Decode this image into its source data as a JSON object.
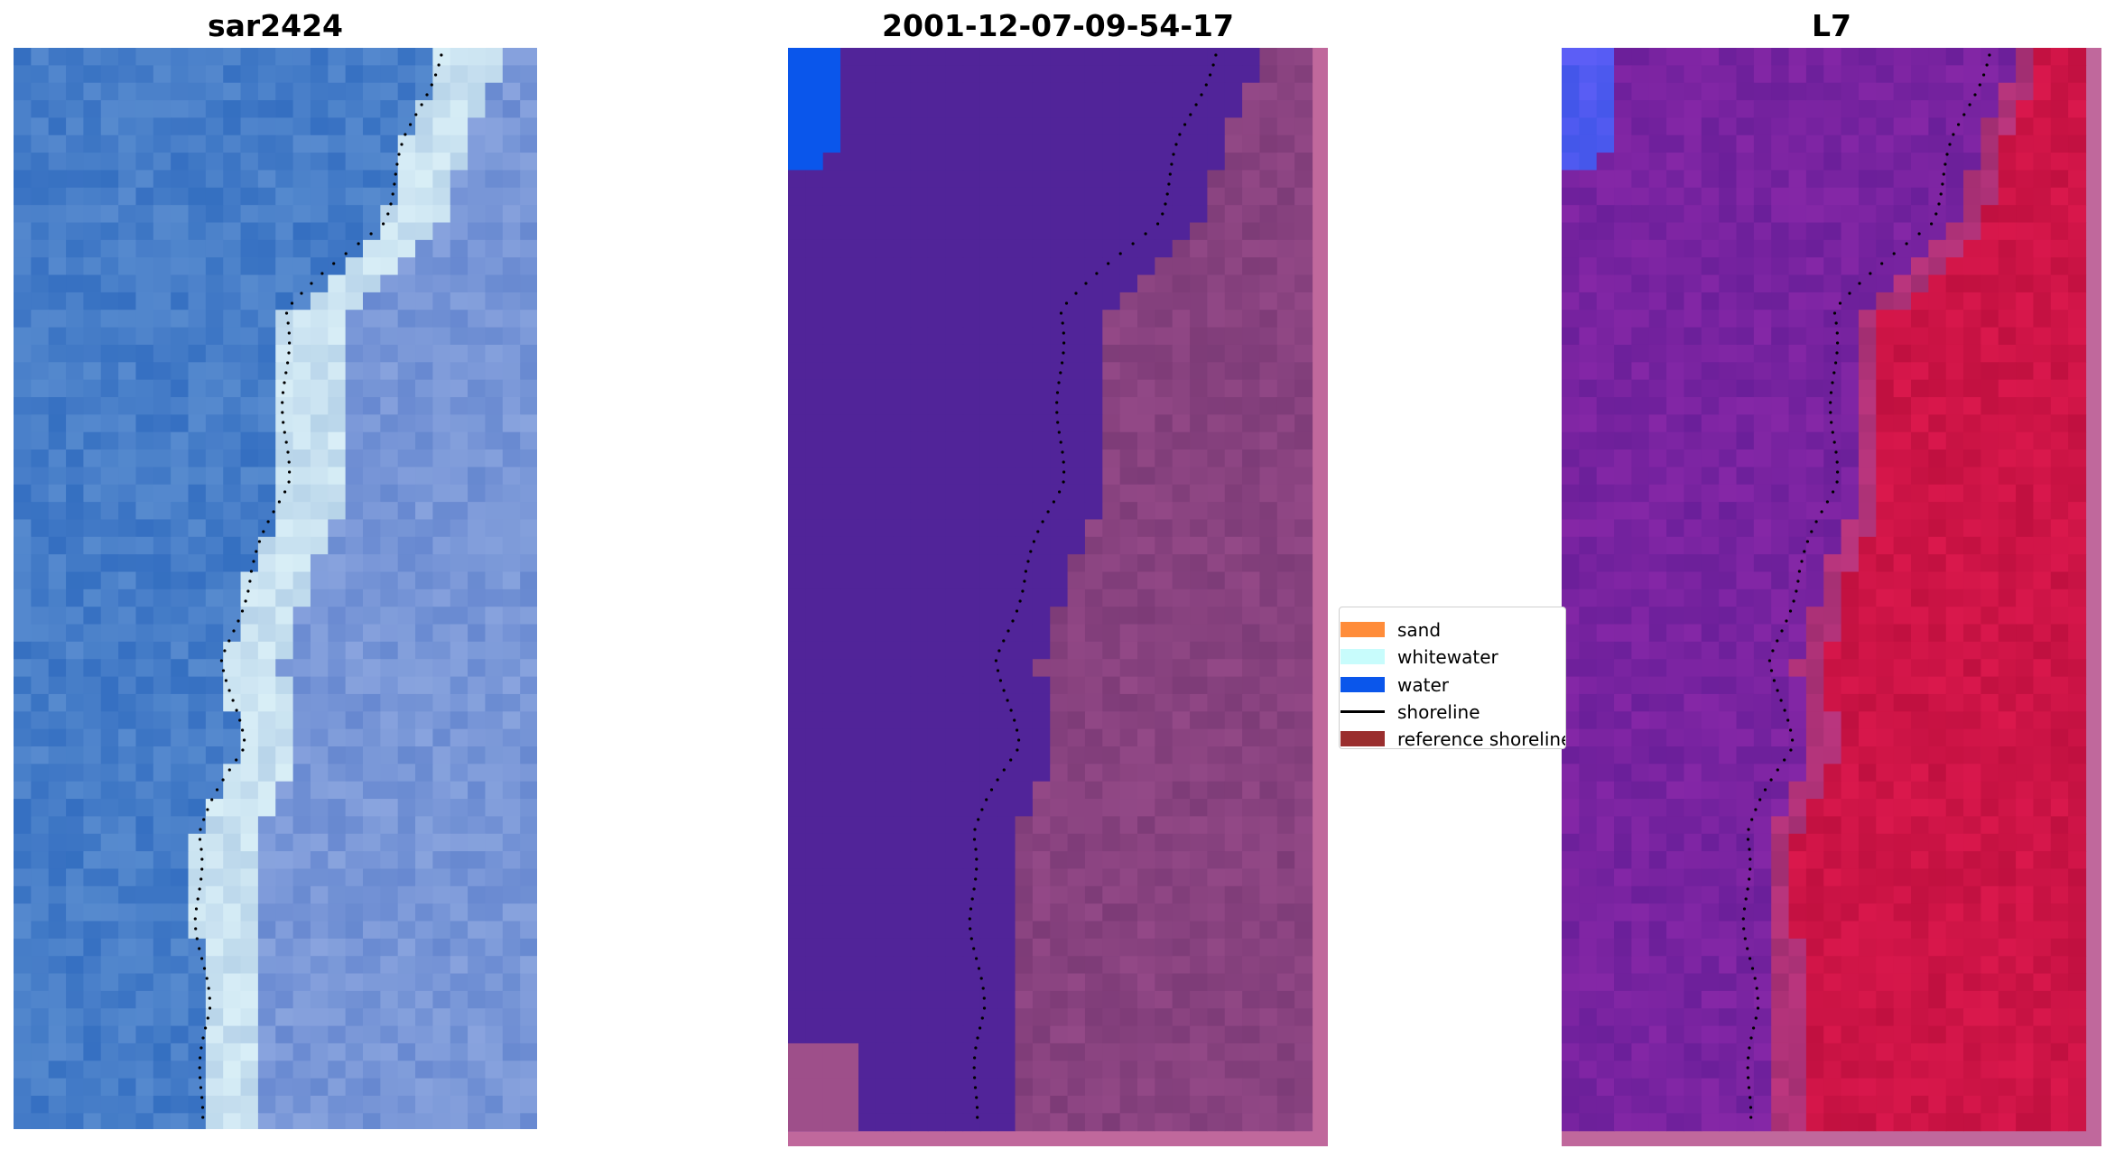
{
  "panels": [
    {
      "title": "sar2424",
      "palette": "rgb"
    },
    {
      "title": "2001-12-07-09-54-17",
      "palette": "classified"
    },
    {
      "title": "L7",
      "palette": "index"
    }
  ],
  "legend": {
    "items": [
      {
        "label": "sand",
        "kind": "patch",
        "color": "#ff8c3a"
      },
      {
        "label": "whitewater",
        "kind": "patch",
        "color": "#c8fcfc"
      },
      {
        "label": "water",
        "kind": "patch",
        "color": "#0a56eb"
      },
      {
        "label": "shoreline",
        "kind": "line",
        "color": "#000000"
      },
      {
        "label": "reference shoreline",
        "kind": "patch",
        "color": "#9a2e2e"
      }
    ]
  },
  "colors": {
    "water_class": "#0a56eb",
    "classified_sea": "#512499",
    "classified_land": "#88427f",
    "classified_border": "#c0689c",
    "shoreline": "#000000"
  }
}
